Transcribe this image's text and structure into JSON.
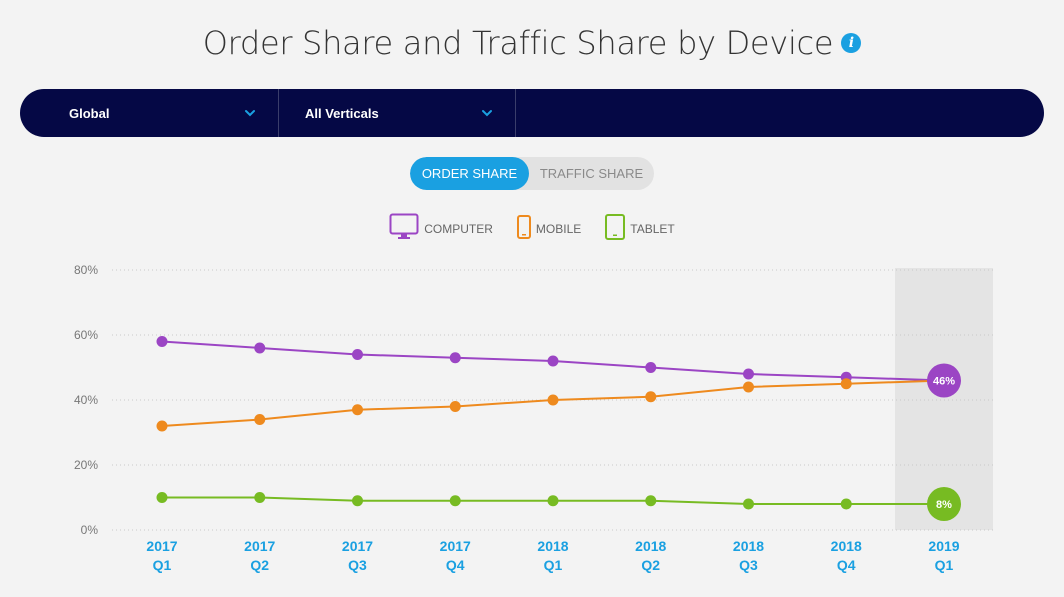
{
  "title": "Order Share and Traffic Share by Device",
  "info_icon": "info-icon",
  "filters": {
    "region": "Global",
    "vertical": "All Verticals"
  },
  "toggle": {
    "active": "ORDER SHARE",
    "inactive": "TRAFFIC SHARE"
  },
  "legend": [
    {
      "label": "COMPUTER",
      "icon": "monitor-icon",
      "color": "#9b45c4"
    },
    {
      "label": "MOBILE",
      "icon": "phone-icon",
      "color": "#ee8a1e"
    },
    {
      "label": "TABLET",
      "icon": "tablet-icon",
      "color": "#77bb22"
    }
  ],
  "colors": {
    "accent": "#1aa0e1",
    "nav": "#050845",
    "computer": "#9b45c4",
    "mobile": "#ee8a1e",
    "tablet": "#77bb22"
  },
  "chart_data": {
    "type": "line",
    "categories": [
      [
        "2017",
        "Q1"
      ],
      [
        "2017",
        "Q2"
      ],
      [
        "2017",
        "Q3"
      ],
      [
        "2017",
        "Q4"
      ],
      [
        "2018",
        "Q1"
      ],
      [
        "2018",
        "Q2"
      ],
      [
        "2018",
        "Q3"
      ],
      [
        "2018",
        "Q4"
      ],
      [
        "2019",
        "Q1"
      ]
    ],
    "yticks": [
      "80%",
      "60%",
      "40%",
      "20%",
      "0%"
    ],
    "ylim": [
      0,
      80
    ],
    "grid": true,
    "highlight_category_index": 8,
    "series": [
      {
        "name": "COMPUTER",
        "color": "#9b45c4",
        "values": [
          58,
          56,
          54,
          53,
          52,
          50,
          48,
          47,
          46
        ],
        "end_label": "46%"
      },
      {
        "name": "MOBILE",
        "color": "#ee8a1e",
        "values": [
          32,
          34,
          37,
          38,
          40,
          41,
          44,
          45,
          46
        ],
        "end_label": ""
      },
      {
        "name": "TABLET",
        "color": "#77bb22",
        "values": [
          10,
          10,
          9,
          9,
          9,
          9,
          8,
          8,
          8
        ],
        "end_label": "8%"
      }
    ]
  }
}
